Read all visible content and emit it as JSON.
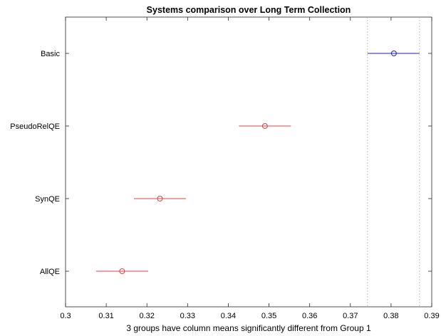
{
  "chart_data": {
    "type": "scatter",
    "title": "Systems comparison over Long Term Collection",
    "xlabel": "3 groups have column means significantly different from Group 1",
    "ylabel": "",
    "xlim": [
      0.3,
      0.39
    ],
    "x_ticks": [
      0.3,
      0.31,
      0.32,
      0.33,
      0.34,
      0.35,
      0.36,
      0.37,
      0.38,
      0.39
    ],
    "x_tick_labels": [
      "0.3",
      "0.31",
      "0.32",
      "0.33",
      "0.34",
      "0.35",
      "0.36",
      "0.37",
      "0.38",
      "0.39"
    ],
    "grid": false,
    "reference_lines_x": [
      0.3742,
      0.387
    ],
    "groups": [
      {
        "name": "Basic",
        "mean": 0.3807,
        "lower": 0.3742,
        "upper": 0.387,
        "color": "#1f1fb4",
        "highlighted": true
      },
      {
        "name": "PseudoRelQE",
        "mean": 0.349,
        "lower": 0.3426,
        "upper": 0.3554,
        "color": "#e04040",
        "highlighted": false
      },
      {
        "name": "SynQE",
        "mean": 0.3232,
        "lower": 0.3168,
        "upper": 0.3296,
        "color": "#e04040",
        "highlighted": false
      },
      {
        "name": "AllQE",
        "mean": 0.3139,
        "lower": 0.3075,
        "upper": 0.3203,
        "color": "#e04040",
        "highlighted": false
      }
    ]
  }
}
